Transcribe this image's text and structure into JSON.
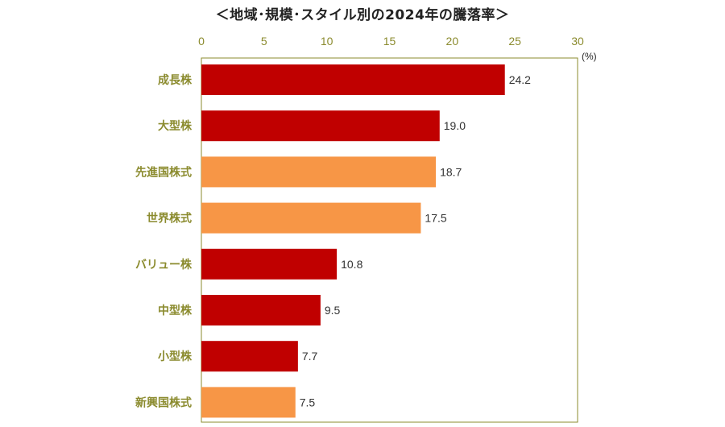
{
  "chart_data": {
    "type": "bar",
    "orientation": "horizontal",
    "title": "＜地域･規模･スタイル別の2024年の騰落率＞",
    "unit_label": "(%)",
    "xlim": [
      0,
      30
    ],
    "x_ticks": [
      "0",
      "5",
      "10",
      "15",
      "20",
      "25",
      "30"
    ],
    "categories": [
      "成長株",
      "大型株",
      "先進国株式",
      "世界株式",
      "バリュー株",
      "中型株",
      "小型株",
      "新興国株式"
    ],
    "values": [
      24.2,
      19.0,
      18.7,
      17.5,
      10.8,
      9.5,
      7.7,
      7.5
    ],
    "value_labels": [
      "24.2",
      "19.0",
      "18.7",
      "17.5",
      "10.8",
      "9.5",
      "7.7",
      "7.5"
    ],
    "bar_colors": [
      "#c00000",
      "#c00000",
      "#f79646",
      "#f79646",
      "#c00000",
      "#c00000",
      "#c00000",
      "#f79646"
    ],
    "axis_color": "#8b8b2e",
    "label_color": "#8b8b2e",
    "grid": false,
    "legend": "none"
  }
}
